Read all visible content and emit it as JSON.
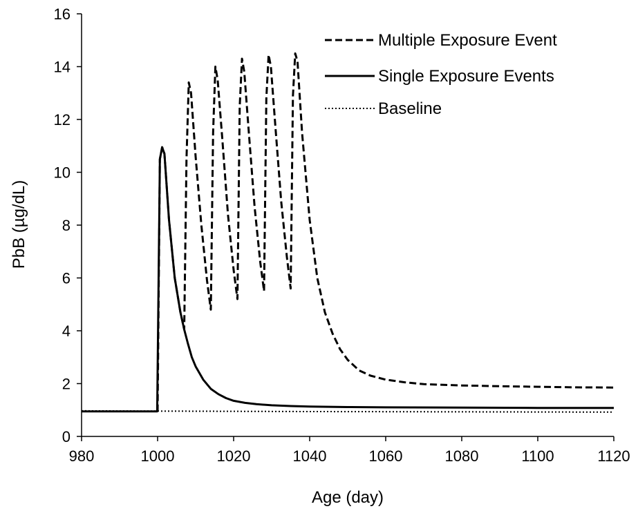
{
  "chart_data": {
    "type": "line",
    "xlabel": "Age (day)",
    "ylabel": "PbB (µg/dL)",
    "xlim": [
      980,
      1120
    ],
    "ylim": [
      0,
      16
    ],
    "xticks": [
      980,
      1000,
      1020,
      1040,
      1060,
      1080,
      1100,
      1120
    ],
    "yticks": [
      0,
      2,
      4,
      6,
      8,
      10,
      12,
      14,
      16
    ],
    "grid": false,
    "legend_position": "top-right",
    "series": [
      {
        "name": "Multiple Exposure Event",
        "style": "dashed",
        "color": "#000000",
        "points": [
          [
            1000.0,
            0.95
          ],
          [
            1000.6,
            10.5
          ],
          [
            1001.2,
            10.95
          ],
          [
            1001.8,
            10.7
          ],
          [
            1003,
            8.2
          ],
          [
            1004.5,
            6.0
          ],
          [
            1006,
            4.7
          ],
          [
            1007,
            4.05
          ],
          [
            1007.6,
            10.5
          ],
          [
            1008.2,
            13.4
          ],
          [
            1008.8,
            13.0
          ],
          [
            1010,
            10.6
          ],
          [
            1011.5,
            8.0
          ],
          [
            1013,
            5.9
          ],
          [
            1014,
            4.8
          ],
          [
            1014.6,
            11.5
          ],
          [
            1015.2,
            14.0
          ],
          [
            1015.8,
            13.5
          ],
          [
            1017,
            11.3
          ],
          [
            1018.5,
            8.4
          ],
          [
            1020,
            6.3
          ],
          [
            1021,
            5.2
          ],
          [
            1021.6,
            12.5
          ],
          [
            1022.2,
            14.3
          ],
          [
            1022.8,
            13.8
          ],
          [
            1024,
            11.5
          ],
          [
            1025.5,
            8.7
          ],
          [
            1027,
            6.6
          ],
          [
            1028,
            5.5
          ],
          [
            1028.6,
            12.8
          ],
          [
            1029.2,
            14.45
          ],
          [
            1029.8,
            14.0
          ],
          [
            1031,
            11.7
          ],
          [
            1032.5,
            8.9
          ],
          [
            1034,
            6.8
          ],
          [
            1035,
            5.6
          ],
          [
            1035.6,
            12.9
          ],
          [
            1036.2,
            14.5
          ],
          [
            1036.8,
            14.2
          ],
          [
            1038,
            11.5
          ],
          [
            1040,
            8.2
          ],
          [
            1042,
            6.0
          ],
          [
            1044,
            4.7
          ],
          [
            1046,
            3.9
          ],
          [
            1048,
            3.3
          ],
          [
            1050,
            2.9
          ],
          [
            1053,
            2.5
          ],
          [
            1056,
            2.3
          ],
          [
            1060,
            2.15
          ],
          [
            1065,
            2.05
          ],
          [
            1070,
            1.98
          ],
          [
            1080,
            1.93
          ],
          [
            1090,
            1.9
          ],
          [
            1100,
            1.88
          ],
          [
            1110,
            1.86
          ],
          [
            1120,
            1.85
          ]
        ]
      },
      {
        "name": "Single Exposure Events",
        "style": "solid",
        "color": "#000000",
        "points": [
          [
            980,
            0.95
          ],
          [
            999.9,
            0.95
          ],
          [
            1000.6,
            10.5
          ],
          [
            1001.2,
            10.95
          ],
          [
            1001.8,
            10.7
          ],
          [
            1003,
            8.2
          ],
          [
            1004.5,
            6.0
          ],
          [
            1006,
            4.7
          ],
          [
            1007,
            4.05
          ],
          [
            1008,
            3.5
          ],
          [
            1009,
            3.0
          ],
          [
            1010,
            2.65
          ],
          [
            1012,
            2.15
          ],
          [
            1014,
            1.8
          ],
          [
            1016,
            1.6
          ],
          [
            1018,
            1.45
          ],
          [
            1020,
            1.35
          ],
          [
            1023,
            1.27
          ],
          [
            1026,
            1.22
          ],
          [
            1030,
            1.18
          ],
          [
            1035,
            1.15
          ],
          [
            1040,
            1.13
          ],
          [
            1050,
            1.11
          ],
          [
            1060,
            1.1
          ],
          [
            1080,
            1.09
          ],
          [
            1100,
            1.08
          ],
          [
            1120,
            1.08
          ]
        ]
      },
      {
        "name": "Baseline",
        "style": "dotted",
        "color": "#000000",
        "points": [
          [
            980,
            0.97
          ],
          [
            1000,
            0.96
          ],
          [
            1040,
            0.94
          ],
          [
            1080,
            0.93
          ],
          [
            1120,
            0.92
          ]
        ]
      }
    ]
  }
}
